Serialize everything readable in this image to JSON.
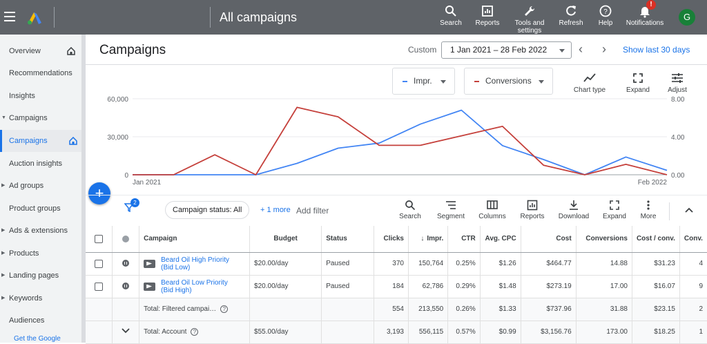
{
  "topbar": {
    "title": "All campaigns",
    "buttons": [
      {
        "label": "Search",
        "icon": "search-icon"
      },
      {
        "label": "Reports",
        "icon": "reports-icon"
      },
      {
        "label": "Tools and",
        "label2": "settings",
        "icon": "wrench-icon"
      },
      {
        "label": "Refresh",
        "icon": "refresh-icon"
      },
      {
        "label": "Help",
        "icon": "help-icon"
      },
      {
        "label": "Notifications",
        "icon": "bell-icon"
      }
    ],
    "notification_badge": "!",
    "avatar_letter": "G"
  },
  "sidebar": {
    "items": [
      {
        "label": "Overview"
      },
      {
        "label": "Recommendations"
      },
      {
        "label": "Insights"
      },
      {
        "label": "Campaigns"
      },
      {
        "label": "Campaigns"
      },
      {
        "label": "Auction insights"
      },
      {
        "label": "Ad groups"
      },
      {
        "label": "Product groups"
      },
      {
        "label": "Ads & extensions"
      },
      {
        "label": "Products"
      },
      {
        "label": "Landing pages"
      },
      {
        "label": "Keywords"
      },
      {
        "label": "Audiences"
      }
    ],
    "footer": "Get the Google"
  },
  "header": {
    "title": "Campaigns",
    "custom_label": "Custom",
    "date_range": "1 Jan 2021 – 28 Feb 2022",
    "show_last": "Show last 30 days"
  },
  "chart_controls": {
    "metric1": "Impr.",
    "metric2": "Conversions",
    "tools": [
      {
        "label": "Chart type",
        "icon": "chart-type-icon"
      },
      {
        "label": "Expand",
        "icon": "expand-icon"
      },
      {
        "label": "Adjust",
        "icon": "adjust-icon"
      }
    ]
  },
  "chart_data": {
    "type": "line",
    "x_start": "Jan 2021",
    "x_end": "Feb 2022",
    "y_left_ticks": [
      "60,000",
      "30,000",
      "0"
    ],
    "y_right_ticks": [
      "8.00",
      "4.00",
      "0.00"
    ],
    "y_left_lim": [
      0,
      60000
    ],
    "y_right_lim": [
      0,
      8
    ],
    "series": [
      {
        "name": "Impr.",
        "color": "#4285f4",
        "axis": "left",
        "values": [
          0,
          0,
          0,
          0,
          9000,
          21000,
          25000,
          40000,
          51000,
          23000,
          12000,
          0,
          14000,
          3500
        ]
      },
      {
        "name": "Conversions",
        "color": "#c5403b",
        "axis": "right",
        "values": [
          0,
          0,
          2.1,
          0,
          7.1,
          6.1,
          3.1,
          3.1,
          4.1,
          5.1,
          1.0,
          0,
          1.1,
          0
        ]
      }
    ]
  },
  "filterbar": {
    "filter_count": "2",
    "chip": "Campaign status: All",
    "more": "+ 1 more",
    "add_filter": "Add filter",
    "tools": [
      {
        "label": "Search",
        "icon": "search-icon"
      },
      {
        "label": "Segment",
        "icon": "segment-icon"
      },
      {
        "label": "Columns",
        "icon": "columns-icon"
      },
      {
        "label": "Reports",
        "icon": "reports-icon"
      },
      {
        "label": "Download",
        "icon": "download-icon"
      },
      {
        "label": "Expand",
        "icon": "expand-icon"
      },
      {
        "label": "More",
        "icon": "more-vert-icon"
      }
    ]
  },
  "table": {
    "headers": {
      "campaign": "Campaign",
      "budget": "Budget",
      "status": "Status",
      "clicks": "Clicks",
      "impr": "Impr.",
      "ctr": "CTR",
      "avg_cpc": "Avg. CPC",
      "cost": "Cost",
      "conversions": "Conversions",
      "cost_conv": "Cost / conv.",
      "conv": "Conv."
    },
    "rows": [
      {
        "name1": "Beard Oil High Priority",
        "name2": "(Bid Low)",
        "budget": "$20.00/day",
        "status": "Paused",
        "clicks": "370",
        "impr": "150,764",
        "ctr": "0.25%",
        "avg_cpc": "$1.26",
        "cost": "$464.77",
        "conversions": "14.88",
        "cost_conv": "$31.23",
        "conv": "4"
      },
      {
        "name1": "Beard Oil Low Priority",
        "name2": "(Bid High)",
        "budget": "$20.00/day",
        "status": "Paused",
        "clicks": "184",
        "impr": "62,786",
        "ctr": "0.29%",
        "avg_cpc": "$1.48",
        "cost": "$273.19",
        "conversions": "17.00",
        "cost_conv": "$16.07",
        "conv": "9"
      }
    ],
    "totals": [
      {
        "label": "Total: Filtered campai…",
        "budget": "",
        "clicks": "554",
        "impr": "213,550",
        "ctr": "0.26%",
        "avg_cpc": "$1.33",
        "cost": "$737.96",
        "conversions": "31.88",
        "cost_conv": "$23.15",
        "conv": "2"
      },
      {
        "label": "Total: Account",
        "budget": "$55.00/day",
        "clicks": "3,193",
        "impr": "556,115",
        "ctr": "0.57%",
        "avg_cpc": "$0.99",
        "cost": "$3,156.76",
        "conversions": "173.00",
        "cost_conv": "$18.25",
        "conv": "1"
      }
    ]
  }
}
